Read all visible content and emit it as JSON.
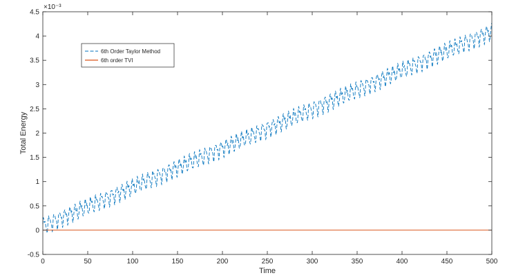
{
  "chart_data": {
    "type": "line",
    "xlabel": "Time",
    "ylabel": "Total Energy",
    "y_exponent_label": "×10⁻³",
    "xlim": [
      0,
      500
    ],
    "ylim": [
      -0.5,
      4.5
    ],
    "x_ticks": [
      0,
      50,
      100,
      150,
      200,
      250,
      300,
      350,
      400,
      450,
      500
    ],
    "y_ticks": [
      -0.5,
      0,
      0.5,
      1,
      1.5,
      2,
      2.5,
      3,
      3.5,
      4,
      4.5
    ],
    "grid": false,
    "legend_position": "top-left",
    "series": [
      {
        "name": "6th Order Taylor Method",
        "style": "dashed",
        "color": "#0072BD",
        "trend_start": 0.09,
        "trend_end": 4.1,
        "oscillation_amplitude": 0.13,
        "oscillation_period": 5.8
      },
      {
        "name": "6th order TVI",
        "style": "solid",
        "color": "#D95319",
        "constant_value": 0
      }
    ]
  }
}
